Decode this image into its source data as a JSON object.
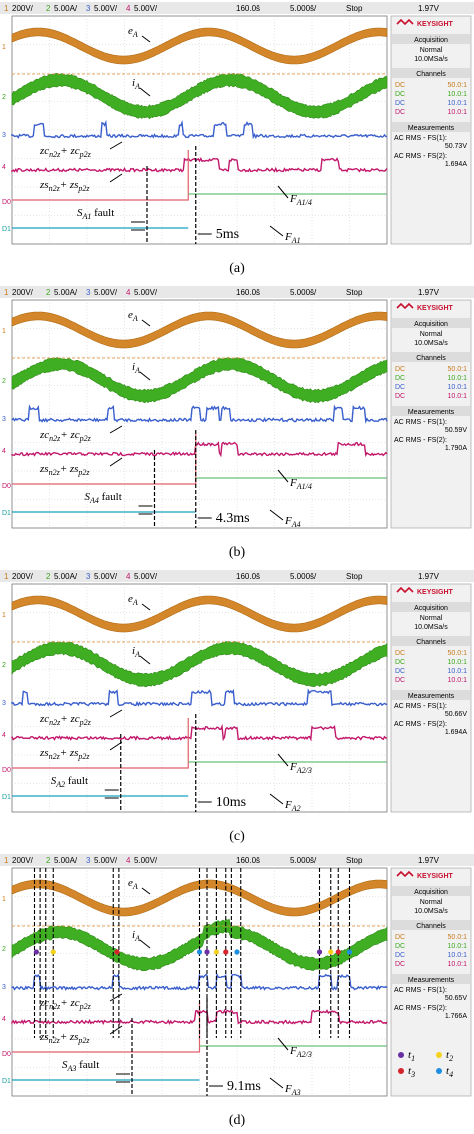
{
  "chart_data": [
    {
      "type": "line",
      "caption": "(a)",
      "top_bar": [
        "1",
        "200V/",
        "2",
        "5.00A/",
        "3",
        "5.00V/",
        "4",
        "5.00V/",
        "160.0š",
        "5.000š/",
        "Stop",
        "1.97V"
      ],
      "side_panel": {
        "brand": "KEYSIGHT",
        "acq_title": "Acquisition",
        "acq_mode": "Normal",
        "acq_rate": "10.0MSa/s",
        "channels_title": "Channels",
        "channels": [
          {
            "coupling": "DC",
            "value": "50.0:1",
            "color": "#c87a1a"
          },
          {
            "coupling": "DC",
            "value": "10.0:1",
            "color": "#3aa81e"
          },
          {
            "coupling": "DC",
            "value": "10.0:1",
            "color": "#3a5fcd"
          },
          {
            "coupling": "DC",
            "value": "10.0:1",
            "color": "#c2186b"
          }
        ],
        "meas_title": "Measurements",
        "meas": [
          {
            "label": "AC RMS - FS(1):",
            "value": "50.73V"
          },
          {
            "label": "AC RMS - FS(2):",
            "value": "1.694A"
          }
        ]
      },
      "ch_markers": [
        "1",
        "2",
        "3",
        "4",
        "D0",
        "D1"
      ],
      "labels": {
        "eA": "e",
        "eA_sub": "A",
        "iA": "i",
        "iA_sub": "A",
        "zc": "zc",
        "zc_s1": "n2z",
        "zc_mid": "+ zc",
        "zc_s2": "p2z",
        "zs": "zs",
        "zs_s1": "n2z",
        "zs_mid": "+ zs",
        "zs_s2": "p2z",
        "fault_sw": "S",
        "fault_sw_sub": "A1",
        "fault_word": "fault",
        "time": "5ms",
        "F1": "F",
        "F1_sub": "A1/4",
        "F2": "F",
        "F2_sub": "A1"
      },
      "time_ms": 5,
      "fault_x": 0.36,
      "detect_x": 0.49,
      "eA_cycles": 2.2,
      "iA_jump": 0,
      "ch3_pulses": [
        [
          0.06,
          0.085
        ],
        [
          0.24,
          0.25
        ],
        [
          0.445,
          0.455
        ],
        [
          0.54,
          0.57
        ],
        [
          0.62,
          0.64
        ]
      ],
      "ch4_pulses": [
        [
          0.46,
          0.55
        ],
        [
          0.58,
          0.6
        ],
        [
          0.825,
          0.87
        ]
      ],
      "d1_step_x": 0.47,
      "dots": []
    },
    {
      "type": "line",
      "caption": "(b)",
      "top_bar": [
        "1",
        "200V/",
        "2",
        "5.00A/",
        "3",
        "5.00V/",
        "4",
        "5.00V/",
        "160.0š",
        "5.000š/",
        "Stop",
        "1.97V"
      ],
      "side_panel": {
        "brand": "KEYSIGHT",
        "acq_title": "Acquisition",
        "acq_mode": "Normal",
        "acq_rate": "10.0MSa/s",
        "channels_title": "Channels",
        "channels": [
          {
            "coupling": "DC",
            "value": "50.0:1",
            "color": "#c87a1a"
          },
          {
            "coupling": "DC",
            "value": "10.0:1",
            "color": "#3aa81e"
          },
          {
            "coupling": "DC",
            "value": "10.0:1",
            "color": "#3a5fcd"
          },
          {
            "coupling": "DC",
            "value": "10.0:1",
            "color": "#c2186b"
          }
        ],
        "meas_title": "Measurements",
        "meas": [
          {
            "label": "AC RMS - FS(1):",
            "value": "50.59V"
          },
          {
            "label": "AC RMS - FS(2):",
            "value": "1.790A"
          }
        ]
      },
      "ch_markers": [
        "1",
        "2",
        "3",
        "4",
        "D0",
        "D1"
      ],
      "labels": {
        "eA": "e",
        "eA_sub": "A",
        "iA": "i",
        "iA_sub": "A",
        "zc": "zc",
        "zc_s1": "n2z",
        "zc_mid": "+ zc",
        "zc_s2": "p2z",
        "zs": "zs",
        "zs_s1": "n2z",
        "zs_mid": "+ zs",
        "zs_s2": "p2z",
        "fault_sw": "S",
        "fault_sw_sub": "A4",
        "fault_word": "fault",
        "time": "4.3ms",
        "F1": "F",
        "F1_sub": "A1/4",
        "F2": "F",
        "F2_sub": "A4"
      },
      "time_ms": 4.3,
      "fault_x": 0.38,
      "detect_x": 0.49,
      "eA_cycles": 2.2,
      "iA_jump": 0,
      "ch3_pulses": [
        [
          0.045,
          0.07
        ],
        [
          0.255,
          0.27
        ],
        [
          0.48,
          0.5
        ],
        [
          0.52,
          0.55
        ],
        [
          0.56,
          0.58
        ],
        [
          0.86,
          0.88
        ],
        [
          0.91,
          0.94
        ]
      ],
      "ch4_pulses": [
        [
          0.49,
          0.55
        ],
        [
          0.56,
          0.6
        ],
        [
          0.87,
          0.94
        ]
      ],
      "d1_step_x": 0.49,
      "dots": []
    },
    {
      "type": "line",
      "caption": "(c)",
      "top_bar": [
        "1",
        "200V/",
        "2",
        "5.00A/",
        "3",
        "5.00V/",
        "4",
        "5.00V/",
        "160.0š",
        "5.000š/",
        "Stop",
        "1.97V"
      ],
      "side_panel": {
        "brand": "KEYSIGHT",
        "acq_title": "Acquisition",
        "acq_mode": "Normal",
        "acq_rate": "10.0MSa/s",
        "channels_title": "Channels",
        "channels": [
          {
            "coupling": "DC",
            "value": "50.0:1",
            "color": "#c87a1a"
          },
          {
            "coupling": "DC",
            "value": "10.0:1",
            "color": "#3aa81e"
          },
          {
            "coupling": "DC",
            "value": "10.0:1",
            "color": "#3a5fcd"
          },
          {
            "coupling": "DC",
            "value": "10.0:1",
            "color": "#c2186b"
          }
        ],
        "meas_title": "Measurements",
        "meas": [
          {
            "label": "AC RMS - FS(1):",
            "value": "50.66V"
          },
          {
            "label": "AC RMS - FS(2):",
            "value": "1.694A"
          }
        ]
      },
      "ch_markers": [
        "1",
        "2",
        "3",
        "4",
        "D0",
        "D1"
      ],
      "labels": {
        "eA": "e",
        "eA_sub": "A",
        "iA": "i",
        "iA_sub": "A",
        "zc": "zc",
        "zc_s1": "n2z",
        "zc_mid": "+ zc",
        "zc_s2": "p2z",
        "zs": "zs",
        "zs_s1": "n2z",
        "zs_mid": "+ zs",
        "zs_s2": "p2z",
        "fault_sw": "S",
        "fault_sw_sub": "A2",
        "fault_word": "fault",
        "time": "10ms",
        "F1": "F",
        "F1_sub": "A2/3",
        "F2": "F",
        "F2_sub": "A2"
      },
      "time_ms": 10,
      "fault_x": 0.29,
      "detect_x": 0.49,
      "eA_cycles": 2.2,
      "iA_jump": 0,
      "ch3_pulses": [
        [
          0.03,
          0.04
        ],
        [
          0.26,
          0.28
        ],
        [
          0.48,
          0.53
        ],
        [
          0.57,
          0.59
        ],
        [
          0.79,
          0.85
        ]
      ],
      "ch4_pulses": [
        [
          0.48,
          0.56
        ],
        [
          0.57,
          0.6
        ],
        [
          0.8,
          0.86
        ]
      ],
      "d1_step_x": 0.47,
      "dots": []
    },
    {
      "type": "line",
      "caption": "(d)",
      "top_bar": [
        "1",
        "200V/",
        "2",
        "5.00A/",
        "3",
        "5.00V/",
        "4",
        "5.00V/",
        "160.0š",
        "5.000š/",
        "Stop",
        "1.97V"
      ],
      "side_panel": {
        "brand": "KEYSIGHT",
        "acq_title": "Acquisition",
        "acq_mode": "Normal",
        "acq_rate": "10.0MSa/s",
        "channels_title": "Channels",
        "channels": [
          {
            "coupling": "DC",
            "value": "50.0:1",
            "color": "#c87a1a"
          },
          {
            "coupling": "DC",
            "value": "10.0:1",
            "color": "#3aa81e"
          },
          {
            "coupling": "DC",
            "value": "10.0:1",
            "color": "#3a5fcd"
          },
          {
            "coupling": "DC",
            "value": "10.0:1",
            "color": "#c2186b"
          }
        ],
        "meas_title": "Measurements",
        "meas": [
          {
            "label": "AC RMS - FS(1):",
            "value": "50.65V"
          },
          {
            "label": "AC RMS - FS(2):",
            "value": "1.766A"
          }
        ]
      },
      "ch_markers": [
        "1",
        "2",
        "3",
        "4",
        "D0",
        "D1"
      ],
      "labels": {
        "eA": "e",
        "eA_sub": "A",
        "iA": "i",
        "iA_sub": "A",
        "zc": "zc",
        "zc_s1": "n2z",
        "zc_mid": "+ zc",
        "zc_s2": "p2z",
        "zs": "zs",
        "zs_s1": "n2z",
        "zs_mid": "+ zs",
        "zs_s2": "p2z",
        "fault_sw": "S",
        "fault_sw_sub": "A3",
        "fault_word": "fault",
        "time": "9.1ms",
        "F1": "F",
        "F1_sub": "A2/3",
        "F2": "F",
        "F2_sub": "A3"
      },
      "time_ms": 9.1,
      "fault_x": 0.32,
      "detect_x": 0.52,
      "eA_cycles": 2.2,
      "iA_jump": 0.6,
      "ch3_pulses": [
        [
          0.06,
          0.075
        ],
        [
          0.27,
          0.285
        ],
        [
          0.5,
          0.52
        ],
        [
          0.545,
          0.57
        ],
        [
          0.585,
          0.61
        ],
        [
          0.82,
          0.85
        ],
        [
          0.87,
          0.9
        ]
      ],
      "ch4_pulses": [
        [
          0.49,
          0.52
        ],
        [
          0.545,
          0.6
        ],
        [
          0.8,
          0.87
        ]
      ],
      "d1_step_x": 0.5,
      "dots": [
        {
          "x": 0.065,
          "c": "t1"
        },
        {
          "x": 0.11,
          "c": "t2"
        },
        {
          "x": 0.28,
          "c": "t3"
        },
        {
          "x": 0.5,
          "c": "t4"
        },
        {
          "x": 0.52,
          "c": "t1"
        },
        {
          "x": 0.545,
          "c": "t2"
        },
        {
          "x": 0.57,
          "c": "t3"
        },
        {
          "x": 0.6,
          "c": "t4"
        },
        {
          "x": 0.82,
          "c": "t1"
        },
        {
          "x": 0.85,
          "c": "t2"
        },
        {
          "x": 0.87,
          "c": "t3"
        },
        {
          "x": 0.9,
          "c": "t4"
        }
      ],
      "vlines": [
        0.06,
        0.075,
        0.09,
        0.11,
        0.27,
        0.285,
        0.5,
        0.52,
        0.545,
        0.57,
        0.585,
        0.61,
        0.82,
        0.85,
        0.87,
        0.9
      ],
      "legend": [
        {
          "sym": "t",
          "sub": "1",
          "color": "#6a2fa3"
        },
        {
          "sym": "t",
          "sub": "2",
          "color": "#f2d21a"
        },
        {
          "sym": "t",
          "sub": "3",
          "color": "#d6242c"
        },
        {
          "sym": "t",
          "sub": "4",
          "color": "#1e8fe0"
        }
      ]
    }
  ]
}
